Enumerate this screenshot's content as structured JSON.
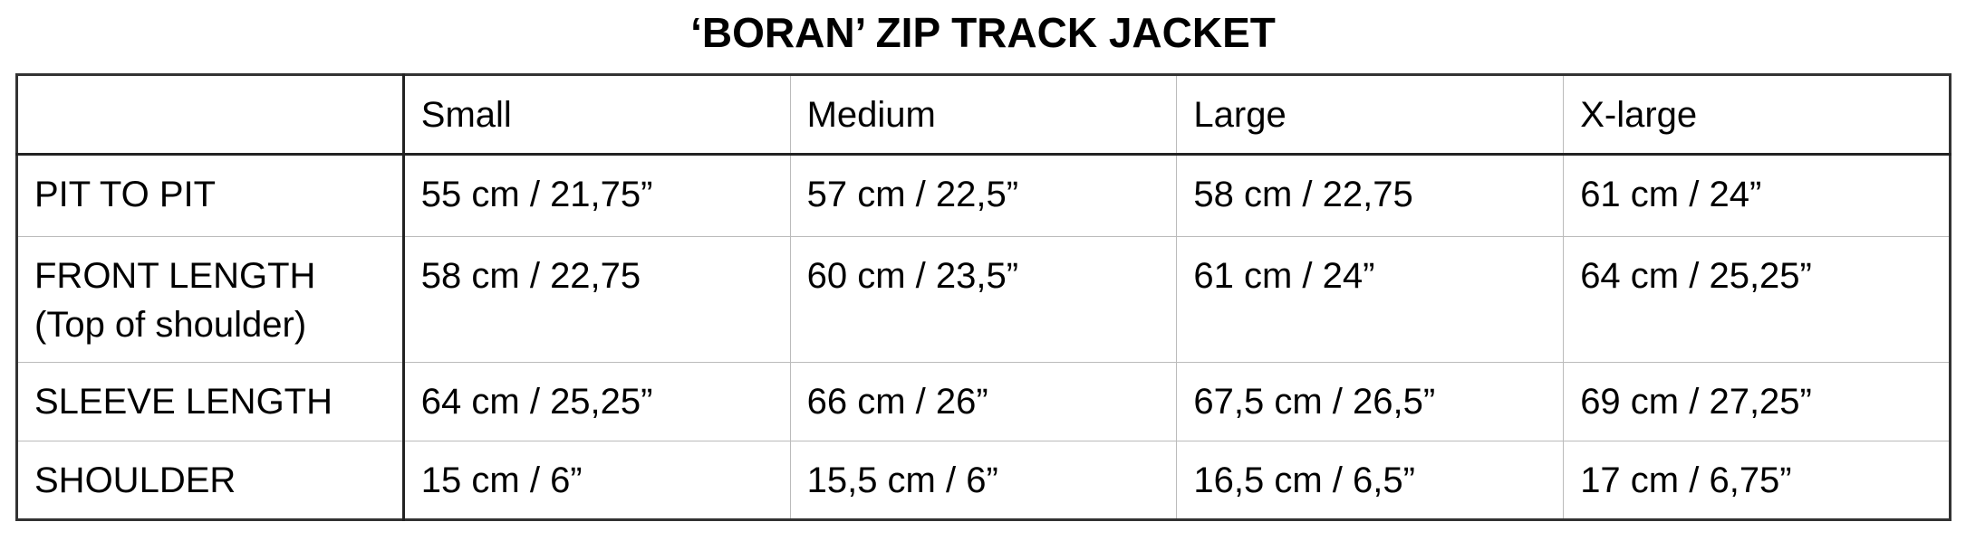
{
  "title": "‘BORAN’ ZIP TRACK JACKET",
  "table": {
    "columns": [
      "Small",
      "Medium",
      "Large",
      "X-large"
    ],
    "rows": [
      {
        "label": [
          "PIT TO PIT"
        ],
        "cells": [
          "55 cm / 21,75”",
          "57 cm / 22,5”",
          "58 cm / 22,75",
          "61 cm / 24”"
        ]
      },
      {
        "label": [
          "FRONT LENGTH",
          "(Top of shoulder)"
        ],
        "cells": [
          "58 cm / 22,75",
          "60 cm / 23,5”",
          "61 cm / 24”",
          "64 cm / 25,25”"
        ]
      },
      {
        "label": [
          "SLEEVE LENGTH"
        ],
        "cells": [
          "64 cm / 25,25”",
          "66 cm / 26”",
          "67,5 cm / 26,5”",
          "69 cm / 27,25”"
        ]
      },
      {
        "label": [
          "SHOULDER"
        ],
        "cells": [
          "15 cm / 6”",
          "15,5 cm / 6”",
          "16,5 cm / 6,5”",
          "17 cm / 6,75”"
        ]
      }
    ]
  }
}
